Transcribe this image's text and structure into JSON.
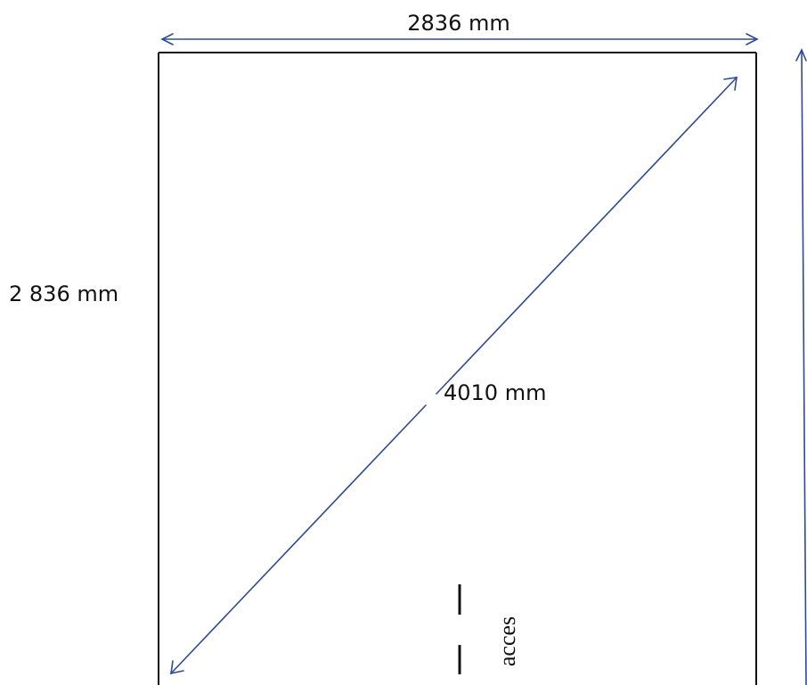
{
  "dimensions": {
    "top_width_label": "2836 mm",
    "left_height_label": "2 836 mm",
    "diagonal_label": "4010 mm"
  },
  "annotations": {
    "door_label": "acces"
  },
  "colors": {
    "outline": "#111111",
    "dimension_line": "#2e4a96",
    "door_marks": "#111111",
    "background": "#ffffff"
  }
}
